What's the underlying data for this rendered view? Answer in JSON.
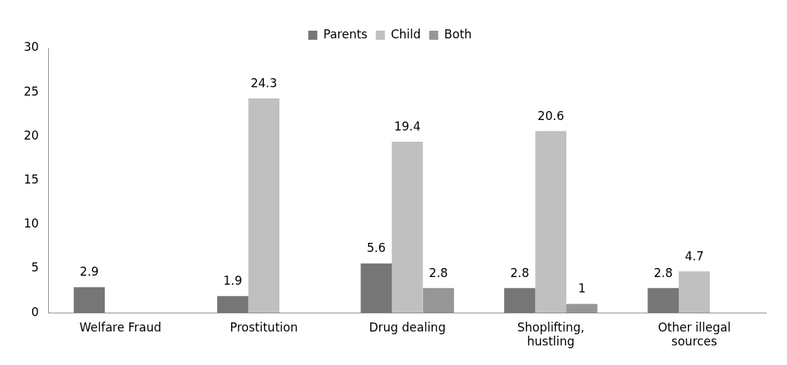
{
  "chart_data": {
    "type": "bar",
    "categories": [
      "Welfare Fraud",
      "Prostitution",
      "Drug dealing",
      "Shoplifting, hustling",
      "Other illegal sources"
    ],
    "series": [
      {
        "name": "Parents",
        "color": "#767676",
        "values": [
          2.9,
          1.9,
          5.6,
          2.8,
          2.8
        ]
      },
      {
        "name": "Child",
        "color": "#c0c0c0",
        "values": [
          null,
          24.3,
          19.4,
          20.6,
          4.7
        ]
      },
      {
        "name": "Both",
        "color": "#969696",
        "values": [
          null,
          null,
          2.8,
          1,
          null
        ]
      }
    ],
    "ylim": [
      0,
      30
    ],
    "yticks": [
      0,
      5,
      10,
      15,
      20,
      25,
      30
    ],
    "grid": false,
    "legend": "top",
    "data_labels": true
  }
}
